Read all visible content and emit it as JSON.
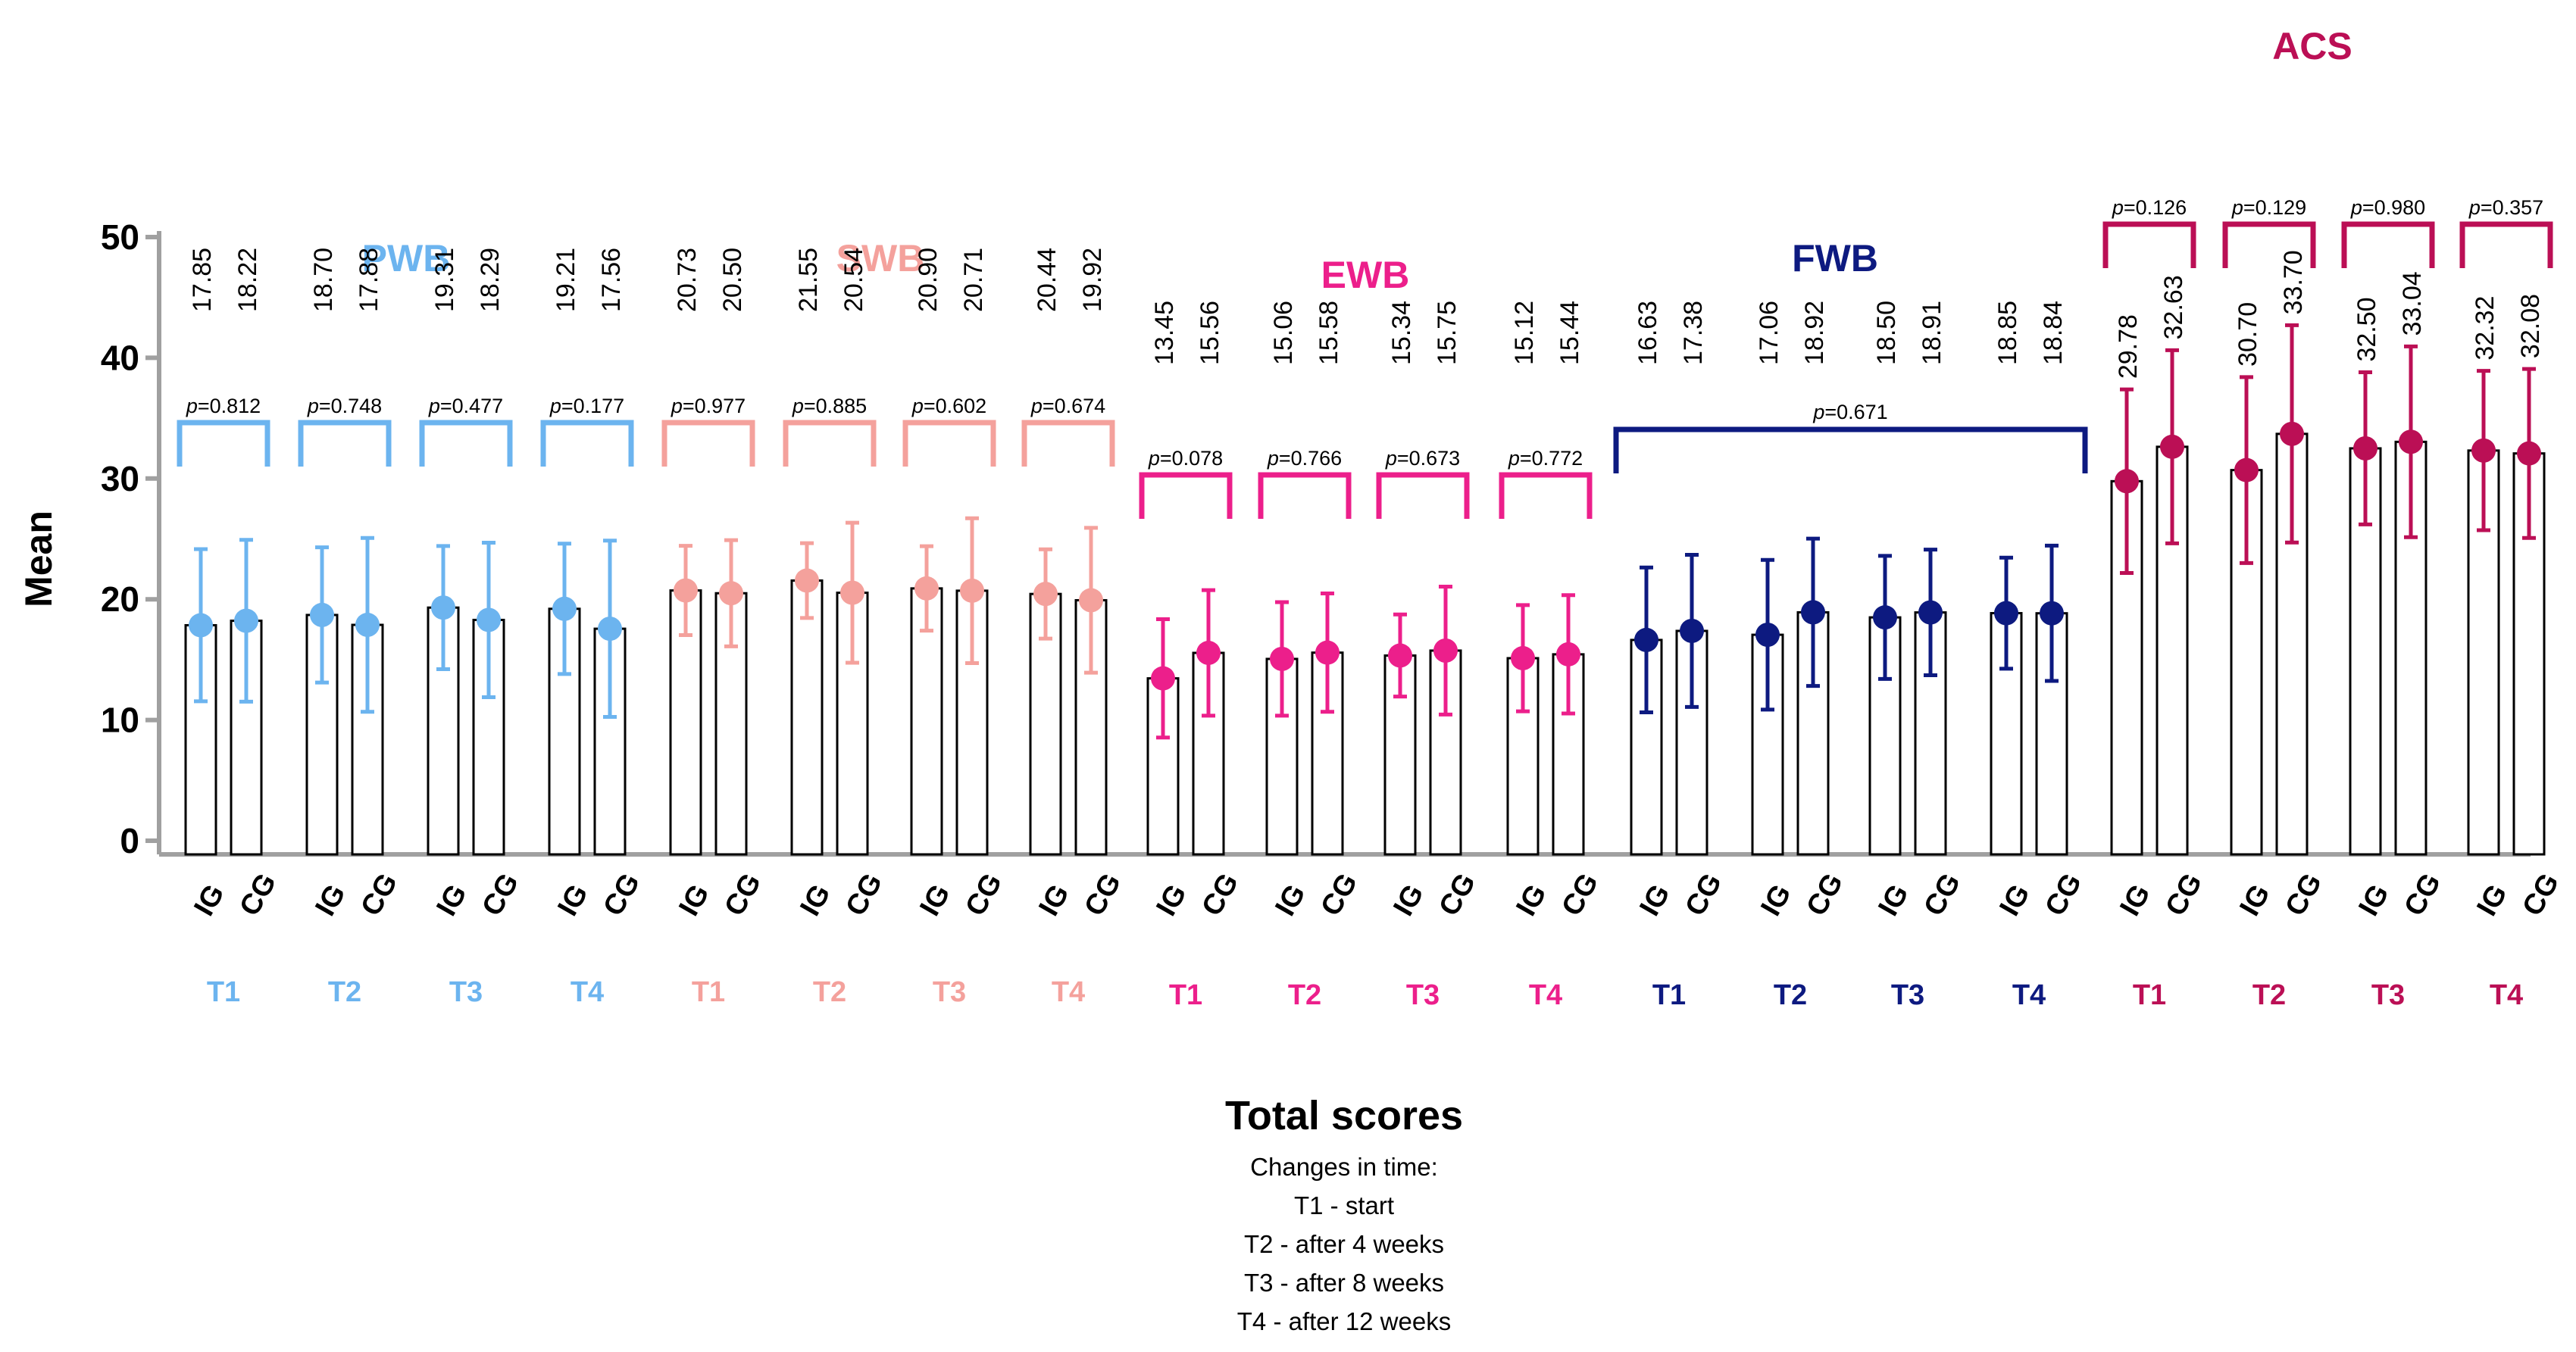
{
  "chart_data": {
    "type": "bar",
    "ylabel": "Mean",
    "ylim": [
      0,
      50
    ],
    "yticks": [
      0,
      10,
      20,
      30,
      40,
      50
    ],
    "group_labels": [
      "IG",
      "CG"
    ],
    "caption": {
      "title": "Total scores",
      "lines": [
        "Changes in time:",
        "T1 - start",
        "T2 - after 4 weeks",
        "T3 - after 8 weeks",
        "T4 - after 12 weeks"
      ]
    },
    "domains": [
      {
        "name": "PWB",
        "color": "#6cb4ef",
        "timepoints": [
          {
            "label": "T1",
            "p": "p=0.812",
            "IG": {
              "mean": 17.85,
              "err": 6.3
            },
            "CG": {
              "mean": 18.22,
              "err": 6.7
            }
          },
          {
            "label": "T2",
            "p": "p=0.748",
            "IG": {
              "mean": 18.7,
              "err": 5.6
            },
            "CG": {
              "mean": 17.88,
              "err": 7.2
            }
          },
          {
            "label": "T3",
            "p": "p=0.477",
            "IG": {
              "mean": 19.31,
              "err": 5.1
            },
            "CG": {
              "mean": 18.29,
              "err": 6.4
            }
          },
          {
            "label": "T4",
            "p": "p=0.177",
            "IG": {
              "mean": 19.21,
              "err": 5.4
            },
            "CG": {
              "mean": 17.56,
              "err": 7.3
            }
          }
        ]
      },
      {
        "name": "SWB",
        "color": "#f4a19c",
        "timepoints": [
          {
            "label": "T1",
            "p": "p=0.977",
            "IG": {
              "mean": 20.73,
              "err": 3.7
            },
            "CG": {
              "mean": 20.5,
              "err": 4.4
            }
          },
          {
            "label": "T2",
            "p": "p=0.885",
            "IG": {
              "mean": 21.55,
              "err": 3.1
            },
            "CG": {
              "mean": 20.54,
              "err": 5.8
            }
          },
          {
            "label": "T3",
            "p": "p=0.602",
            "IG": {
              "mean": 20.9,
              "err": 3.5
            },
            "CG": {
              "mean": 20.71,
              "err": 6.0
            }
          },
          {
            "label": "T4",
            "p": "p=0.674",
            "IG": {
              "mean": 20.44,
              "err": 3.7
            },
            "CG": {
              "mean": 19.92,
              "err": 6.0
            }
          }
        ]
      },
      {
        "name": "EWB",
        "color": "#ec1f8b",
        "timepoints": [
          {
            "label": "T1",
            "p": "p=0.078",
            "IG": {
              "mean": 13.45,
              "err": 4.9
            },
            "CG": {
              "mean": 15.56,
              "err": 5.2
            }
          },
          {
            "label": "T2",
            "p": "p=0.766",
            "IG": {
              "mean": 15.06,
              "err": 4.7
            },
            "CG": {
              "mean": 15.58,
              "err": 4.9
            }
          },
          {
            "label": "T3",
            "p": "p=0.673",
            "IG": {
              "mean": 15.34,
              "err": 3.4
            },
            "CG": {
              "mean": 15.75,
              "err": 5.3
            }
          },
          {
            "label": "T4",
            "p": "p=0.772",
            "IG": {
              "mean": 15.12,
              "err": 4.4
            },
            "CG": {
              "mean": 15.44,
              "err": 4.9
            }
          }
        ]
      },
      {
        "name": "FWB",
        "color": "#0d1a80",
        "p_overall": "p=0.671",
        "timepoints": [
          {
            "label": "T1",
            "IG": {
              "mean": 16.63,
              "err": 6.0
            },
            "CG": {
              "mean": 17.38,
              "err": 6.3
            }
          },
          {
            "label": "T2",
            "IG": {
              "mean": 17.06,
              "err": 6.2
            },
            "CG": {
              "mean": 18.92,
              "err": 6.1
            }
          },
          {
            "label": "T3",
            "IG": {
              "mean": 18.5,
              "err": 5.1
            },
            "CG": {
              "mean": 18.91,
              "err": 5.2
            }
          },
          {
            "label": "T4",
            "IG": {
              "mean": 18.85,
              "err": 4.6
            },
            "CG": {
              "mean": 18.84,
              "err": 5.6
            }
          }
        ]
      },
      {
        "name": "ACS",
        "color": "#bb0f55",
        "timepoints": [
          {
            "label": "T1",
            "p": "p=0.126",
            "IG": {
              "mean": 29.78,
              "err": 7.6
            },
            "CG": {
              "mean": 32.63,
              "err": 8.0
            }
          },
          {
            "label": "T2",
            "p": "p=0.129",
            "IG": {
              "mean": 30.7,
              "err": 7.7
            },
            "CG": {
              "mean": 33.7,
              "err": 9.0
            }
          },
          {
            "label": "T3",
            "p": "p=0.980",
            "IG": {
              "mean": 32.5,
              "err": 6.3
            },
            "CG": {
              "mean": 33.04,
              "err": 7.9
            }
          },
          {
            "label": "T4",
            "p": "p=0.357",
            "IG": {
              "mean": 32.32,
              "err": 6.6
            },
            "CG": {
              "mean": 32.08,
              "err": 7.0
            }
          }
        ]
      }
    ]
  }
}
